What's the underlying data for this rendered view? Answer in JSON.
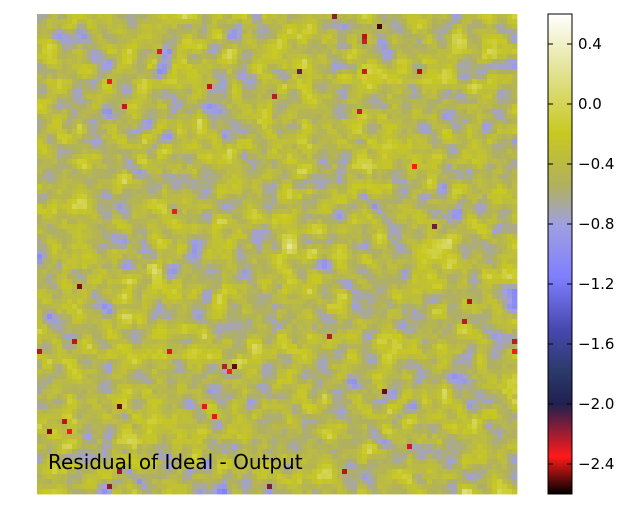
{
  "chart_data": {
    "type": "heatmap",
    "title": "",
    "xlabel": "",
    "ylabel": "",
    "annotation": "Residual of Ideal - Output",
    "colorbar": {
      "vmin": -2.6,
      "vmax": 0.6,
      "ticks": [
        0.4,
        0.0,
        -0.4,
        -0.8,
        -1.2,
        -1.6,
        -2.0,
        -2.4
      ],
      "tick_labels": [
        "0.4",
        "0.0",
        "−0.4",
        "−0.8",
        "−1.2",
        "−1.6",
        "−2.0",
        "−2.4"
      ],
      "colormap_stops": [
        {
          "value": -2.6,
          "color": "#000000"
        },
        {
          "value": -2.35,
          "color": "#ff1a1a"
        },
        {
          "value": -2.0,
          "color": "#202050"
        },
        {
          "value": -1.78,
          "color": "#2a3a6a"
        },
        {
          "value": -1.5,
          "color": "#4848b0"
        },
        {
          "value": -1.15,
          "color": "#7f7fff"
        },
        {
          "value": -0.8,
          "color": "#a0a0e0"
        },
        {
          "value": -0.55,
          "color": "#b0b060"
        },
        {
          "value": -0.2,
          "color": "#c8c820"
        },
        {
          "value": 0.15,
          "color": "#dede80"
        },
        {
          "value": 0.6,
          "color": "#ffffff"
        }
      ]
    },
    "grid_size": [
      96,
      96
    ],
    "value_distribution": {
      "mean": -0.45,
      "spread": 0.3
    },
    "grid": false,
    "axes_visible": false
  }
}
